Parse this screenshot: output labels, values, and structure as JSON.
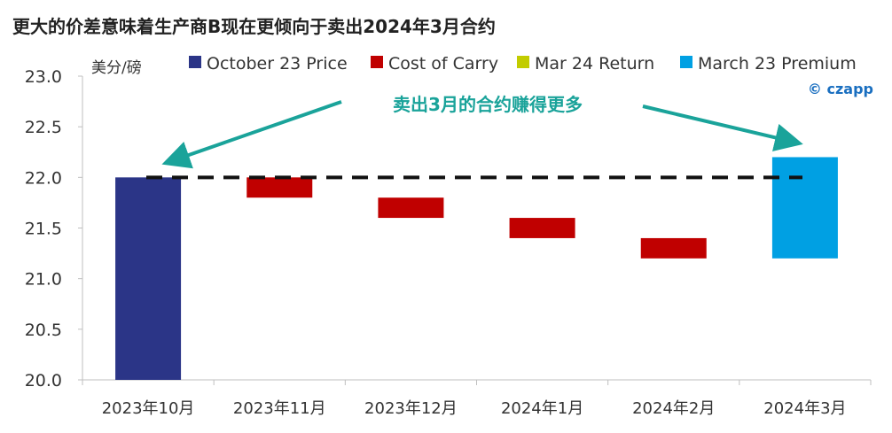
{
  "chart_data": {
    "type": "bar",
    "subtype": "waterfall",
    "title": "更大的价差意味着生产商B现在更倾向于卖出2024年3月合约",
    "ylabel": "美分/磅",
    "xlabel": "",
    "ylim": [
      20.0,
      23.0
    ],
    "yticks": [
      "20.0",
      "20.5",
      "21.0",
      "21.5",
      "22.0",
      "22.5",
      "23.0"
    ],
    "grid": false,
    "legend_position": "top",
    "categories": [
      "2023年10月",
      "2023年11月",
      "2023年12月",
      "2024年1月",
      "2024年2月",
      "2024年3月"
    ],
    "series": [
      {
        "name": "October 23 Price",
        "color": "#2b3587",
        "bars": [
          {
            "category_index": 0,
            "bottom": 20.0,
            "top": 22.0
          }
        ]
      },
      {
        "name": "Cost of Carry",
        "color": "#c00000",
        "bars": [
          {
            "category_index": 1,
            "bottom": 21.8,
            "top": 22.0
          },
          {
            "category_index": 2,
            "bottom": 21.6,
            "top": 21.8
          },
          {
            "category_index": 3,
            "bottom": 21.4,
            "top": 21.6
          },
          {
            "category_index": 4,
            "bottom": 21.2,
            "top": 21.4
          }
        ]
      },
      {
        "name": "Mar 24 Return",
        "color": "#c2cc00",
        "bars": []
      },
      {
        "name": "March 23 Premium",
        "color": "#00a0e3",
        "bars": [
          {
            "category_index": 5,
            "bottom": 21.2,
            "top": 22.2
          }
        ]
      }
    ],
    "reference_line": {
      "value": 22.0,
      "style": "dashed",
      "color": "#111111"
    },
    "annotation": {
      "text": "卖出3月的合约赚得更多",
      "color": "#1aa39a"
    },
    "brand": "© czapp"
  }
}
